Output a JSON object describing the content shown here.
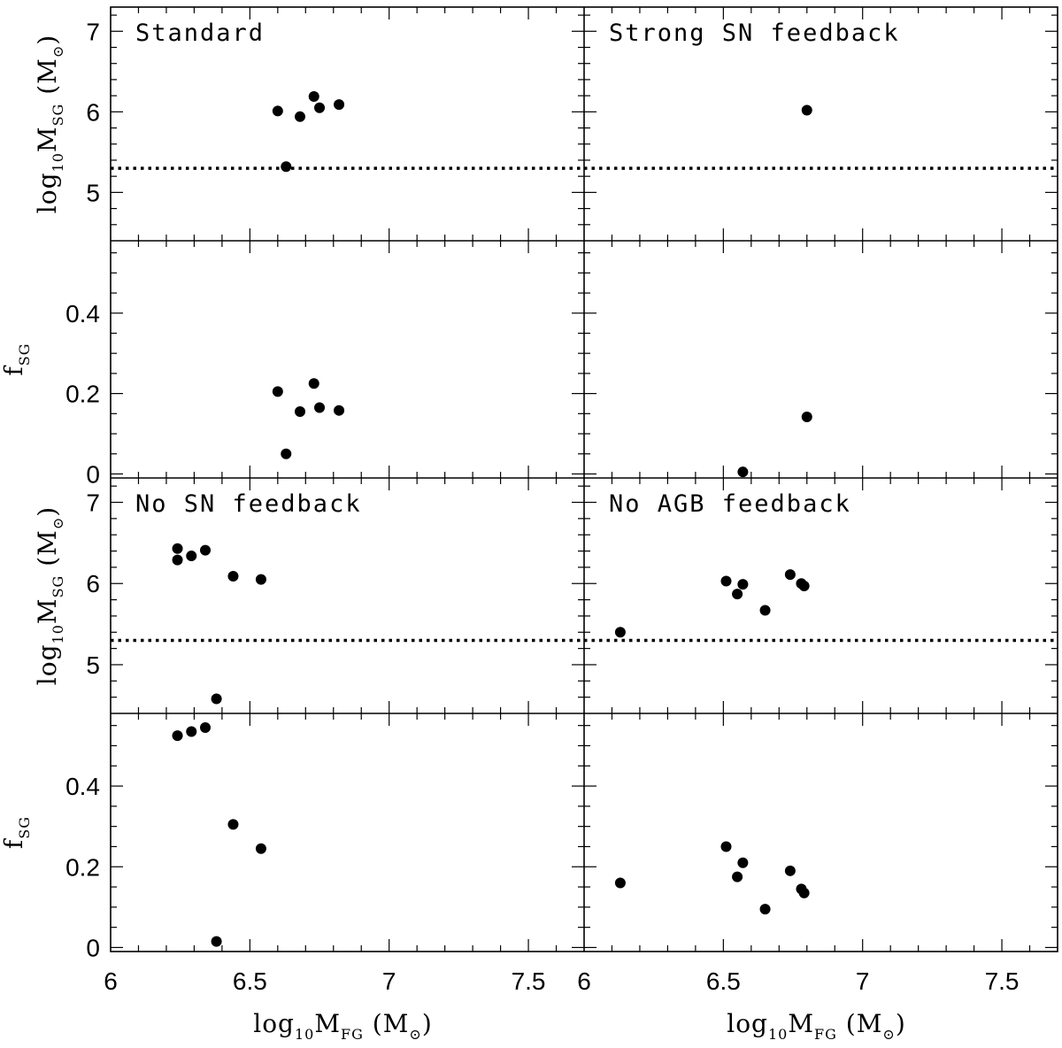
{
  "chart_data": [
    {
      "type": "scatter",
      "panel": "Standard",
      "title": "Standard",
      "ylabel": "log10MSG (M⊙)",
      "ylim": [
        4.4,
        7.3
      ],
      "yticks": [
        5,
        6,
        7
      ],
      "xlim": [
        6.0,
        7.7
      ],
      "reference_line_y": 5.3,
      "x": [
        6.6,
        6.63,
        6.68,
        6.73,
        6.75,
        6.82
      ],
      "y": [
        6.01,
        5.32,
        5.94,
        6.19,
        6.05,
        6.09
      ]
    },
    {
      "type": "scatter",
      "panel": "Standard",
      "ylabel": "fSG",
      "ylim": [
        -0.01,
        0.58
      ],
      "yticks": [
        0,
        0.2,
        0.4
      ],
      "xlim": [
        6.0,
        7.7
      ],
      "x": [
        6.6,
        6.63,
        6.68,
        6.73,
        6.75,
        6.82
      ],
      "y": [
        0.205,
        0.05,
        0.155,
        0.225,
        0.165,
        0.158
      ]
    },
    {
      "type": "scatter",
      "panel": "Strong SN feedback",
      "title": "Strong SN feedback",
      "ylim": [
        4.4,
        7.3
      ],
      "xlim": [
        6.0,
        7.7
      ],
      "reference_line_y": 5.3,
      "x": [
        6.8
      ],
      "y": [
        6.02
      ]
    },
    {
      "type": "scatter",
      "panel": "Strong SN feedback",
      "ylim": [
        -0.01,
        0.58
      ],
      "xlim": [
        6.0,
        7.7
      ],
      "x": [
        6.57,
        6.8
      ],
      "y": [
        0.005,
        0.142
      ]
    },
    {
      "type": "scatter",
      "panel": "No SN feedback",
      "title": "No SN feedback",
      "ylabel": "log10MSG (M⊙)",
      "ylim": [
        4.4,
        7.3
      ],
      "yticks": [
        5,
        6,
        7
      ],
      "xlim": [
        6.0,
        7.7
      ],
      "reference_line_y": 5.3,
      "x": [
        6.24,
        6.24,
        6.29,
        6.34,
        6.44,
        6.38,
        6.54
      ],
      "y": [
        6.43,
        6.29,
        6.34,
        6.41,
        6.09,
        4.58,
        6.05
      ]
    },
    {
      "type": "scatter",
      "panel": "No SN feedback",
      "ylabel": "fSG",
      "ylim": [
        -0.01,
        0.58
      ],
      "yticks": [
        0,
        0.2,
        0.4
      ],
      "xticks": [
        "6",
        "6.5",
        "7",
        "7.5"
      ],
      "xlabel": "log10MFG (M⊙)",
      "xlim": [
        6.0,
        7.7
      ],
      "x": [
        6.24,
        6.29,
        6.34,
        6.44,
        6.38,
        6.54
      ],
      "y": [
        0.525,
        0.535,
        0.545,
        0.305,
        0.015,
        0.245
      ]
    },
    {
      "type": "scatter",
      "panel": "No AGB feedback",
      "title": "No AGB feedback",
      "ylim": [
        4.4,
        7.3
      ],
      "xlim": [
        6.0,
        7.7
      ],
      "reference_line_y": 5.3,
      "x": [
        6.13,
        6.51,
        6.55,
        6.57,
        6.65,
        6.74,
        6.78,
        6.79
      ],
      "y": [
        5.4,
        6.03,
        5.87,
        5.99,
        5.67,
        6.11,
        6.0,
        5.97
      ]
    },
    {
      "type": "scatter",
      "panel": "No AGB feedback",
      "ylim": [
        -0.01,
        0.58
      ],
      "xticks": [
        "6",
        "6.5",
        "7",
        "7.5"
      ],
      "xlabel": "log10MFG (M⊙)",
      "xlim": [
        6.0,
        7.7
      ],
      "x": [
        6.13,
        6.51,
        6.55,
        6.57,
        6.65,
        6.74,
        6.78,
        6.79
      ],
      "y": [
        0.16,
        0.25,
        0.175,
        0.21,
        0.095,
        0.19,
        0.145,
        0.135
      ]
    }
  ]
}
